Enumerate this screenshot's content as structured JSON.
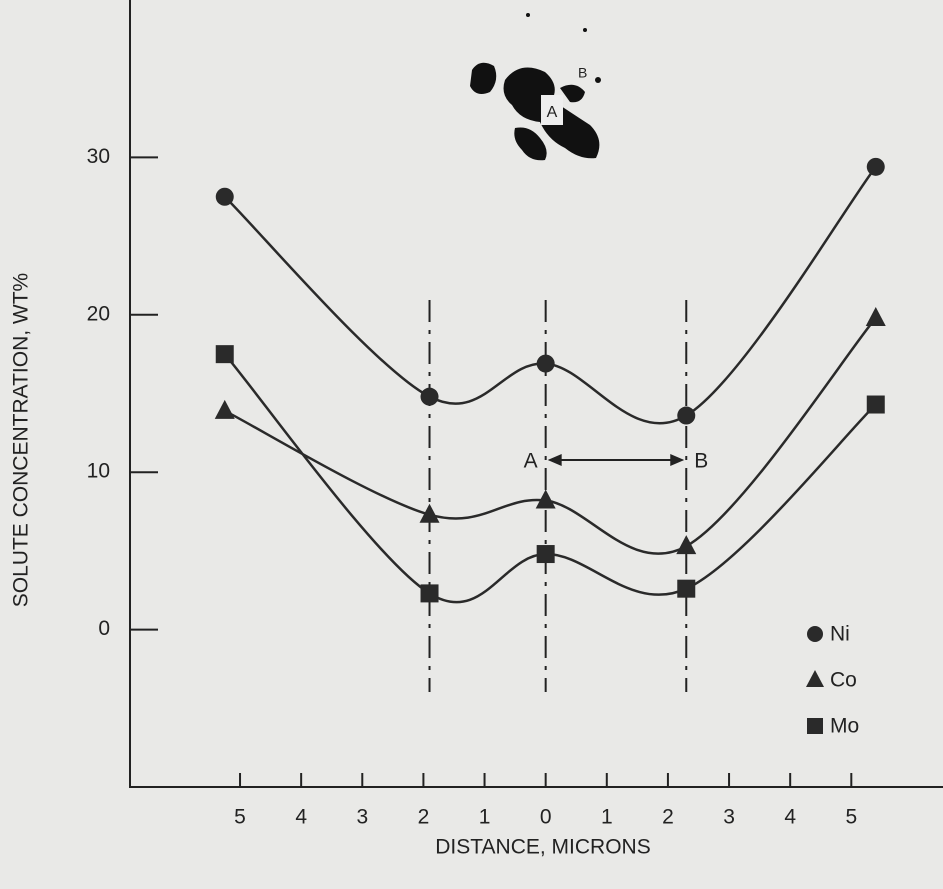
{
  "chart_data": {
    "type": "line",
    "x_label": "DISTANCE, MICRONS",
    "y_label": "SOLUTE CONCENTRATION, WT%",
    "x": [
      -5.25,
      -1.9,
      0,
      2.3,
      5.4
    ],
    "series": [
      {
        "name": "Ni",
        "marker": "circle",
        "color": "#2a2a2a",
        "values": [
          27.5,
          14.8,
          16.9,
          13.6,
          29.4
        ]
      },
      {
        "name": "Co",
        "marker": "triangle",
        "color": "#2a2a2a",
        "values": [
          13.9,
          7.3,
          8.2,
          5.3,
          19.8
        ]
      },
      {
        "name": "Mo",
        "marker": "square",
        "color": "#2a2a2a",
        "values": [
          17.5,
          2.3,
          4.8,
          2.6,
          14.3
        ]
      }
    ],
    "xlim": [
      -6.8,
      6.5
    ],
    "ylim": [
      -10,
      40
    ],
    "xticks": [
      {
        "value": -5,
        "label": "5"
      },
      {
        "value": -4,
        "label": "4"
      },
      {
        "value": -3,
        "label": "3"
      },
      {
        "value": -2,
        "label": "2"
      },
      {
        "value": -1,
        "label": "1"
      },
      0,
      {
        "value": 1,
        "label": "1"
      },
      {
        "value": 2,
        "label": "2"
      },
      {
        "value": 3,
        "label": "3"
      },
      {
        "value": 4,
        "label": "4"
      },
      {
        "value": 5,
        "label": "5"
      }
    ],
    "yticks": [
      0,
      10,
      20,
      30
    ],
    "reference_lines": [
      -1.9,
      0,
      2.3
    ],
    "annotations": [
      "A",
      "B"
    ],
    "inset_labels": [
      "B",
      "A"
    ],
    "legend": "lower right"
  }
}
